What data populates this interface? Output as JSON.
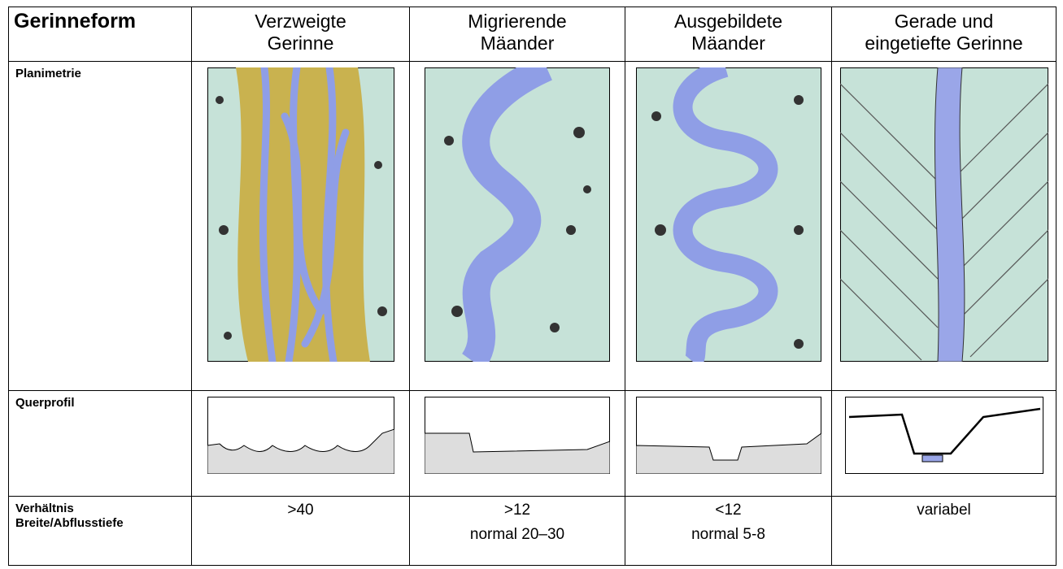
{
  "header": {
    "cells": [
      [
        "Gerinneform"
      ],
      [
        "Verzweigte",
        "Gerinne"
      ],
      [
        "Migrierende",
        "Mäander"
      ],
      [
        "Ausgebildete",
        "Mäander"
      ],
      [
        "Gerade und",
        "eingetiefte Gerinne"
      ]
    ]
  },
  "rows": [
    {
      "label": [
        "Planimetrie"
      ]
    },
    {
      "label": [
        "Querprofil"
      ]
    },
    {
      "label": [
        "Verhältnis",
        "Breite/Abflusstiefe"
      ],
      "cells": [
        [
          ">40"
        ],
        [
          ">12",
          "normal 20–30"
        ],
        [
          "<12",
          "normal 5-8"
        ],
        [
          "variabel"
        ]
      ]
    }
  ]
}
